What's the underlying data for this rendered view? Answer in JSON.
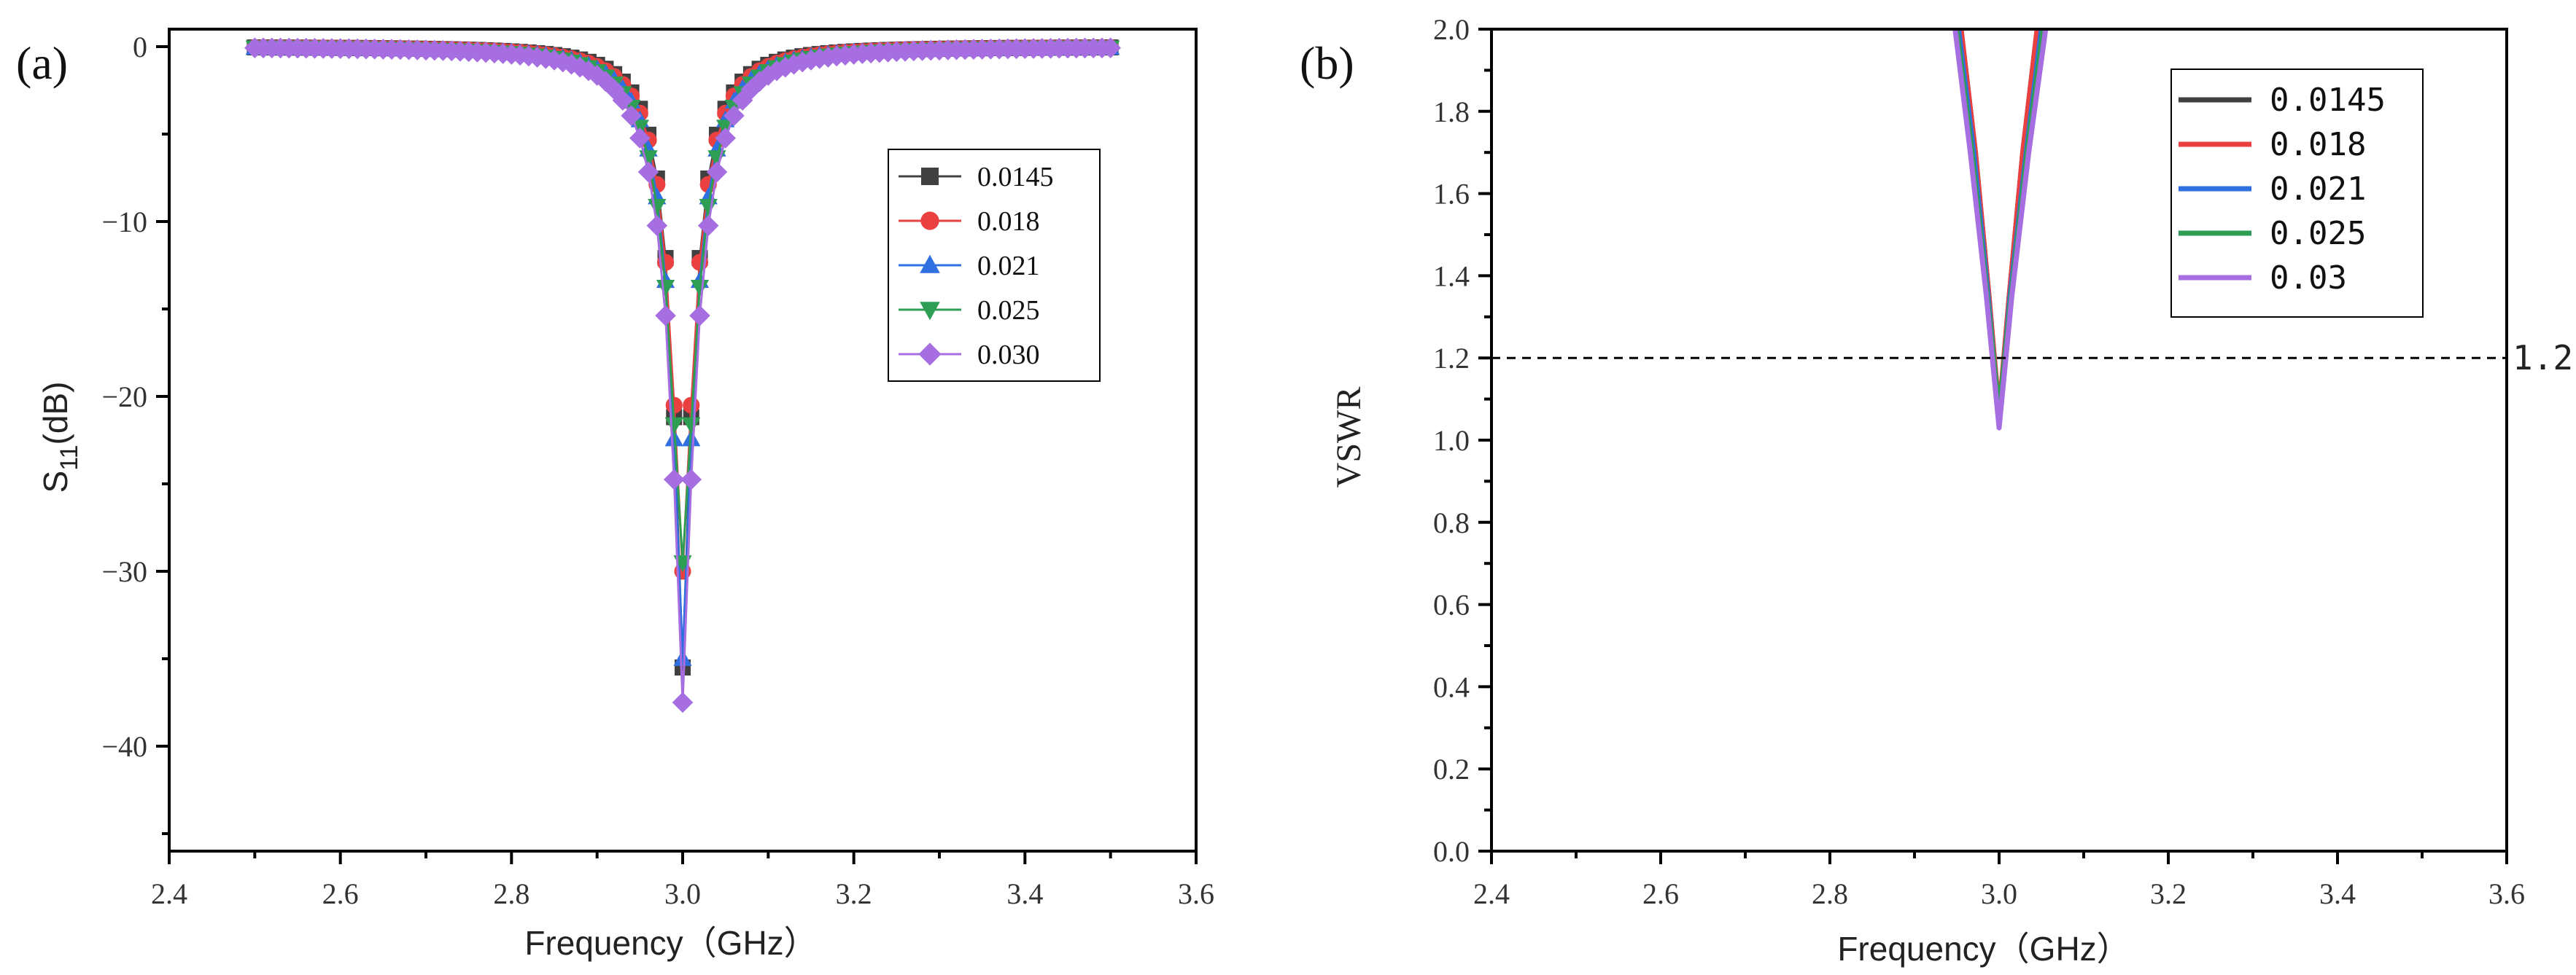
{
  "chart_data": [
    {
      "panel_label": "(a)",
      "type": "scatter",
      "title": "",
      "xlabel": "Frequency（GHz）",
      "ylabel_main": "S",
      "ylabel_sub": "11",
      "ylabel_unit": "(dB)",
      "xlim": [
        2.4,
        3.6
      ],
      "ylim": [
        -46,
        1
      ],
      "grid": false,
      "legend_position": "right-middle",
      "x_ticks": [
        {
          "value": 2.4,
          "label": "2.4"
        },
        {
          "value": 2.6,
          "label": "2.6"
        },
        {
          "value": 2.8,
          "label": "2.8"
        },
        {
          "value": 3.0,
          "label": "3.0"
        },
        {
          "value": 3.2,
          "label": "3.2"
        },
        {
          "value": 3.4,
          "label": "3.4"
        },
        {
          "value": 3.6,
          "label": "3.6"
        }
      ],
      "y_ticks": [
        {
          "value": 0,
          "label": "0"
        },
        {
          "value": -10,
          "label": "−10"
        },
        {
          "value": -20,
          "label": "−20"
        },
        {
          "value": -30,
          "label": "−30"
        },
        {
          "value": -40,
          "label": "−40"
        }
      ],
      "series": [
        {
          "name": "0.0145",
          "color": "#404040",
          "marker": "square",
          "min_db": -35.5,
          "width_ghz": 0.036,
          "x_start": 2.5,
          "x_end": 3.5,
          "x_step": 0.01
        },
        {
          "name": "0.018",
          "color": "#ea4040",
          "marker": "circle",
          "min_db": -30.0,
          "width_ghz": 0.038,
          "x_start": 2.5,
          "x_end": 3.5,
          "x_step": 0.01
        },
        {
          "name": "0.021",
          "color": "#2f6fe0",
          "marker": "triangle-up",
          "min_db": -35.0,
          "width_ghz": 0.04,
          "x_start": 2.5,
          "x_end": 3.5,
          "x_step": 0.01
        },
        {
          "name": "0.025",
          "color": "#2f9e55",
          "marker": "triangle-down",
          "min_db": -29.5,
          "width_ghz": 0.043,
          "x_start": 2.5,
          "x_end": 3.5,
          "x_step": 0.01
        },
        {
          "name": "0.030",
          "color": "#a66ee0",
          "marker": "diamond",
          "min_db": -37.5,
          "width_ghz": 0.046,
          "x_start": 2.5,
          "x_end": 3.5,
          "x_step": 0.01
        }
      ]
    },
    {
      "panel_label": "(b)",
      "type": "line",
      "title": "",
      "xlabel": "Frequency（GHz）",
      "ylabel": "VSWR",
      "xlim": [
        2.4,
        3.6
      ],
      "ylim": [
        0.0,
        2.0
      ],
      "grid": false,
      "legend_position": "top-right",
      "x_ticks": [
        {
          "value": 2.4,
          "label": "2.4"
        },
        {
          "value": 2.6,
          "label": "2.6"
        },
        {
          "value": 2.8,
          "label": "2.8"
        },
        {
          "value": 3.0,
          "label": "3.0"
        },
        {
          "value": 3.2,
          "label": "3.2"
        },
        {
          "value": 3.4,
          "label": "3.4"
        },
        {
          "value": 3.6,
          "label": "3.6"
        }
      ],
      "y_ticks": [
        {
          "value": 0.0,
          "label": "0.0"
        },
        {
          "value": 0.2,
          "label": "0.2"
        },
        {
          "value": 0.4,
          "label": "0.4"
        },
        {
          "value": 0.6,
          "label": "0.6"
        },
        {
          "value": 0.8,
          "label": "0.8"
        },
        {
          "value": 1.0,
          "label": "1.0"
        },
        {
          "value": 1.2,
          "label": "1.2"
        },
        {
          "value": 1.4,
          "label": "1.4"
        },
        {
          "value": 1.6,
          "label": "1.6"
        },
        {
          "value": 1.8,
          "label": "1.8"
        },
        {
          "value": 2.0,
          "label": "2.0"
        }
      ],
      "reference_line": {
        "value": 1.2,
        "label": "1.2"
      },
      "series": [
        {
          "name": "0.0145",
          "color": "#404040",
          "x": [
            2.955,
            2.972,
            2.988,
            3.0,
            3.012,
            3.028,
            3.045
          ],
          "y": [
            2.0,
            1.7,
            1.35,
            1.06,
            1.35,
            1.7,
            2.0
          ]
        },
        {
          "name": "0.018",
          "color": "#ea4040",
          "x": [
            2.955,
            2.972,
            2.988,
            3.0,
            3.012,
            3.028,
            3.045
          ],
          "y": [
            2.0,
            1.7,
            1.35,
            1.07,
            1.35,
            1.7,
            2.0
          ]
        },
        {
          "name": "0.021",
          "color": "#2f6fe0",
          "x": [
            2.952,
            2.97,
            2.987,
            3.0,
            3.013,
            3.032,
            3.05
          ],
          "y": [
            2.0,
            1.7,
            1.35,
            1.05,
            1.35,
            1.7,
            2.0
          ]
        },
        {
          "name": "0.025",
          "color": "#2f9e55",
          "x": [
            2.95,
            2.968,
            2.986,
            3.0,
            3.014,
            3.033,
            3.052
          ],
          "y": [
            2.0,
            1.7,
            1.35,
            1.07,
            1.35,
            1.7,
            2.0
          ]
        },
        {
          "name": "0.03",
          "color": "#a66ee0",
          "x": [
            2.948,
            2.966,
            2.985,
            3.0,
            3.015,
            3.035,
            3.055
          ],
          "y": [
            2.0,
            1.7,
            1.35,
            1.03,
            1.35,
            1.7,
            2.0
          ]
        }
      ]
    }
  ]
}
